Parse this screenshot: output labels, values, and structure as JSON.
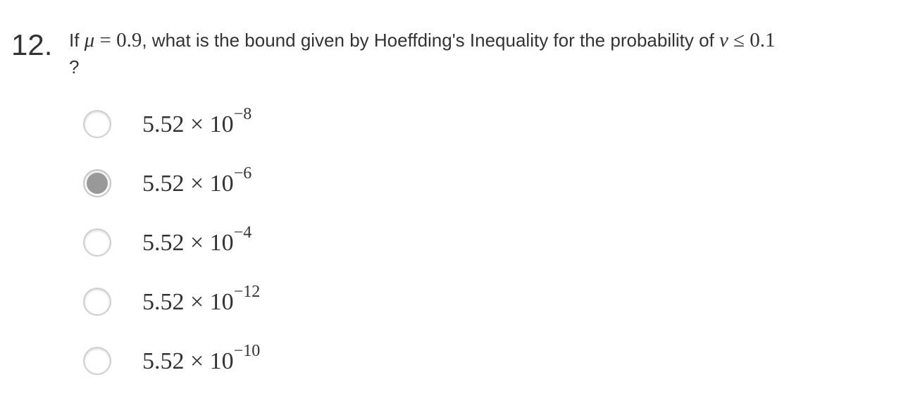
{
  "question": {
    "number": "12.",
    "text_prefix": "If ",
    "mu_symbol": "μ",
    "mu_equals": " = 0.9",
    "text_middle": ", what is the bound given by Hoeffding's Inequality for the probability of ",
    "nu_symbol": "ν",
    "nu_condition": " ≤ 0.1",
    "text_end": "?"
  },
  "options": [
    {
      "base": "5.52 × 10",
      "exponent": "−8",
      "selected": false
    },
    {
      "base": "5.52 × 10",
      "exponent": "−6",
      "selected": true
    },
    {
      "base": "5.52 × 10",
      "exponent": "−4",
      "selected": false
    },
    {
      "base": "5.52 × 10",
      "exponent": "−12",
      "selected": false
    },
    {
      "base": "5.52 × 10",
      "exponent": "−10",
      "selected": false
    }
  ],
  "colors": {
    "text": "#333333",
    "radio_border": "#cfcfcf",
    "radio_selected_fill": "#999999"
  }
}
